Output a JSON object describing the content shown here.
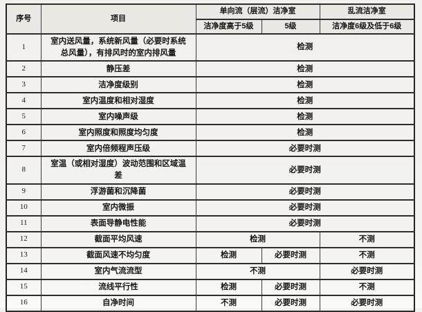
{
  "colors": {
    "paper": "#f2f1ed",
    "header_fill": "#eae8e2",
    "border": "#2d2d2d",
    "text": "#161616"
  },
  "table": {
    "header": {
      "col_no": "序号",
      "col_item": "项目",
      "group_unidirectional": "单向流（层流）洁净室",
      "group_turbulent": "乱流洁净室",
      "sub_above5": "洁净度高于5级",
      "sub_class5": "5级",
      "sub_class6": "洁净度6级及低于6级"
    },
    "value_labels": {
      "test": "检测",
      "test_if_necessary": "必要时测",
      "no_test": "不测"
    },
    "rows": [
      {
        "no": "1",
        "item": "室内送风量，系统新风量（必要时系统总风量），有排风时的室内排风量",
        "cells": [
          {
            "span": 3,
            "value": "检测"
          }
        ]
      },
      {
        "no": "2",
        "item": "静压差",
        "cells": [
          {
            "span": 3,
            "value": "检测"
          }
        ]
      },
      {
        "no": "3",
        "item": "洁净度级别",
        "cells": [
          {
            "span": 3,
            "value": "检测"
          }
        ]
      },
      {
        "no": "4",
        "item": "室内温度和相对湿度",
        "cells": [
          {
            "span": 3,
            "value": "检测"
          }
        ]
      },
      {
        "no": "5",
        "item": "室内噪声级",
        "cells": [
          {
            "span": 3,
            "value": "检测"
          }
        ]
      },
      {
        "no": "6",
        "item": "室内照度和照度均匀度",
        "cells": [
          {
            "span": 3,
            "value": "检测"
          }
        ]
      },
      {
        "no": "7",
        "item": "室内倍频程声压级",
        "cells": [
          {
            "span": 3,
            "value": "必要时测"
          }
        ]
      },
      {
        "no": "8",
        "item": "室温（或相对湿度）波动范围和区域温差",
        "cells": [
          {
            "span": 3,
            "value": "必要时测"
          }
        ]
      },
      {
        "no": "9",
        "item": "浮游菌和沉降菌",
        "cells": [
          {
            "span": 3,
            "value": "必要时测"
          }
        ]
      },
      {
        "no": "10",
        "item": "室内微振",
        "cells": [
          {
            "span": 3,
            "value": "必要时测"
          }
        ]
      },
      {
        "no": "11",
        "item": "表面导静电性能",
        "cells": [
          {
            "span": 3,
            "value": "必要时测"
          }
        ]
      },
      {
        "no": "12",
        "item": "截面平均风速",
        "cells": [
          {
            "span": 2,
            "value": "检测"
          },
          {
            "span": 1,
            "value": "不测"
          }
        ]
      },
      {
        "no": "13",
        "item": "截面风速不均匀度",
        "cells": [
          {
            "span": 1,
            "value": "检测"
          },
          {
            "span": 1,
            "value": "必要时测"
          },
          {
            "span": 1,
            "value": "不测"
          }
        ]
      },
      {
        "no": "14",
        "item": "室内气流流型",
        "cells": [
          {
            "span": 2,
            "value": "不测"
          },
          {
            "span": 1,
            "value": "必要时测"
          }
        ]
      },
      {
        "no": "15",
        "item": "流线平行性",
        "cells": [
          {
            "span": 1,
            "value": "检测"
          },
          {
            "span": 1,
            "value": "必要时测"
          },
          {
            "span": 1,
            "value": "不测"
          }
        ]
      },
      {
        "no": "16",
        "item": "自净时间",
        "cells": [
          {
            "span": 1,
            "value": "不测"
          },
          {
            "span": 1,
            "value": "必要时测"
          },
          {
            "span": 1,
            "value": "必要时测"
          }
        ]
      }
    ]
  }
}
